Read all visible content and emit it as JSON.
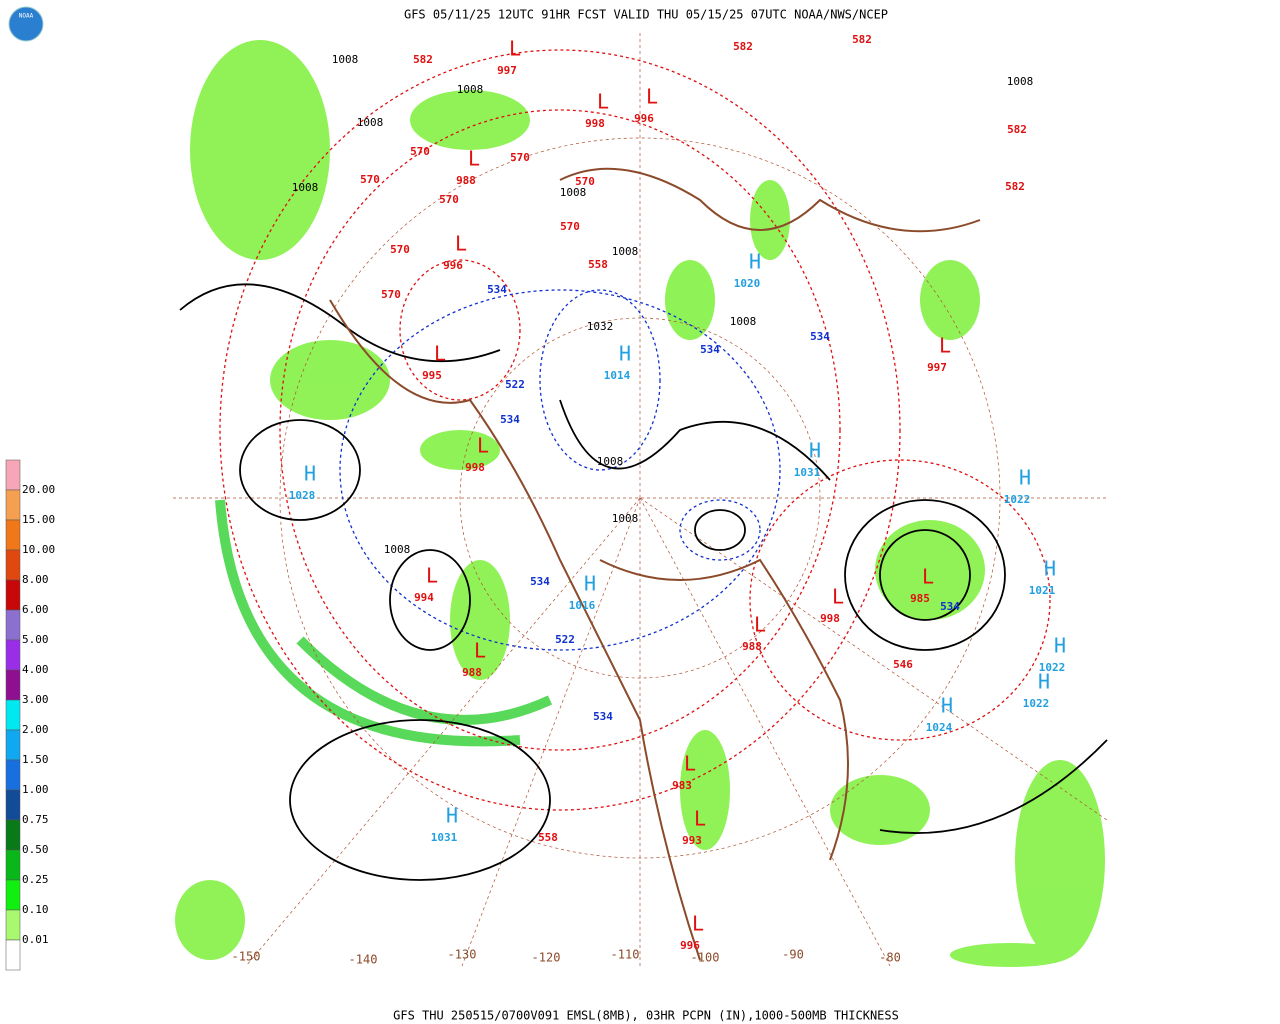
{
  "header": {
    "title": "GFS 05/11/25 12UTC 91HR FCST VALID THU 05/15/25 07UTC NOAA/NWS/NCEP"
  },
  "logo": {
    "label": "NOAA"
  },
  "footer": {
    "text": "GFS THU 250515/0700V091 EMSL(8MB), 03HR PCPN (IN),1000-500MB THICKNESS"
  },
  "legend": {
    "labels": [
      "20.00",
      "15.00",
      "10.00",
      "8.00",
      "6.00",
      "5.00",
      "4.00",
      "3.00",
      "2.00",
      "1.50",
      "1.00",
      "0.75",
      "0.50",
      "0.25",
      "0.10",
      "0.01"
    ],
    "colors": [
      "#f6a6b6",
      "#f4a050",
      "#f07818",
      "#e04810",
      "#c80808",
      "#8c70d0",
      "#9a2ee8",
      "#8e1090",
      "#00e8f0",
      "#10a8f0",
      "#1870e0",
      "#104c98",
      "#087a18",
      "#08b818",
      "#10f010",
      "#a8f870",
      "#ffffff"
    ]
  },
  "map": {
    "longitude_labels": [
      -150,
      -140,
      -130,
      -120,
      -110,
      -100,
      -90,
      -80
    ],
    "pressure_centers": [
      {
        "symbol": "H",
        "value": "1028"
      },
      {
        "symbol": "L",
        "value": "994"
      },
      {
        "symbol": "L",
        "value": "988"
      },
      {
        "symbol": "H",
        "value": "1031"
      },
      {
        "symbol": "H",
        "value": "1014"
      },
      {
        "symbol": "L",
        "value": "998"
      },
      {
        "symbol": "L",
        "value": "995"
      },
      {
        "symbol": "H",
        "value": "1020"
      },
      {
        "symbol": "H",
        "value": "1031"
      },
      {
        "symbol": "H",
        "value": "1022"
      },
      {
        "symbol": "L",
        "value": "985"
      },
      {
        "symbol": "H",
        "value": "1021"
      },
      {
        "symbol": "H",
        "value": "1022"
      },
      {
        "symbol": "H",
        "value": "1022"
      },
      {
        "symbol": "H",
        "value": "1024"
      },
      {
        "symbol": "L",
        "value": "998"
      },
      {
        "symbol": "L",
        "value": "983"
      },
      {
        "symbol": "L",
        "value": "993"
      },
      {
        "symbol": "L",
        "value": "996"
      },
      {
        "symbol": "H",
        "value": "1016"
      },
      {
        "symbol": "L",
        "value": "997"
      },
      {
        "symbol": "L",
        "value": "996"
      },
      {
        "symbol": "L",
        "value": "998"
      },
      {
        "symbol": "L",
        "value": "988"
      },
      {
        "symbol": "L",
        "value": "996"
      },
      {
        "symbol": "L",
        "value": "997"
      },
      {
        "symbol": "L",
        "value": "988"
      }
    ],
    "thickness_labels": [
      "582",
      "582",
      "582",
      "582",
      "582",
      "570",
      "570",
      "570",
      "570",
      "570",
      "570",
      "570",
      "570",
      "558",
      "558",
      "546",
      "534",
      "534",
      "534",
      "534",
      "534",
      "534",
      "534",
      "522",
      "522"
    ],
    "isobar_labels": [
      "1008",
      "1008",
      "1008",
      "1008",
      "1008",
      "1008",
      "1008",
      "1032",
      "1008",
      "1008",
      "1008",
      "1008"
    ]
  }
}
